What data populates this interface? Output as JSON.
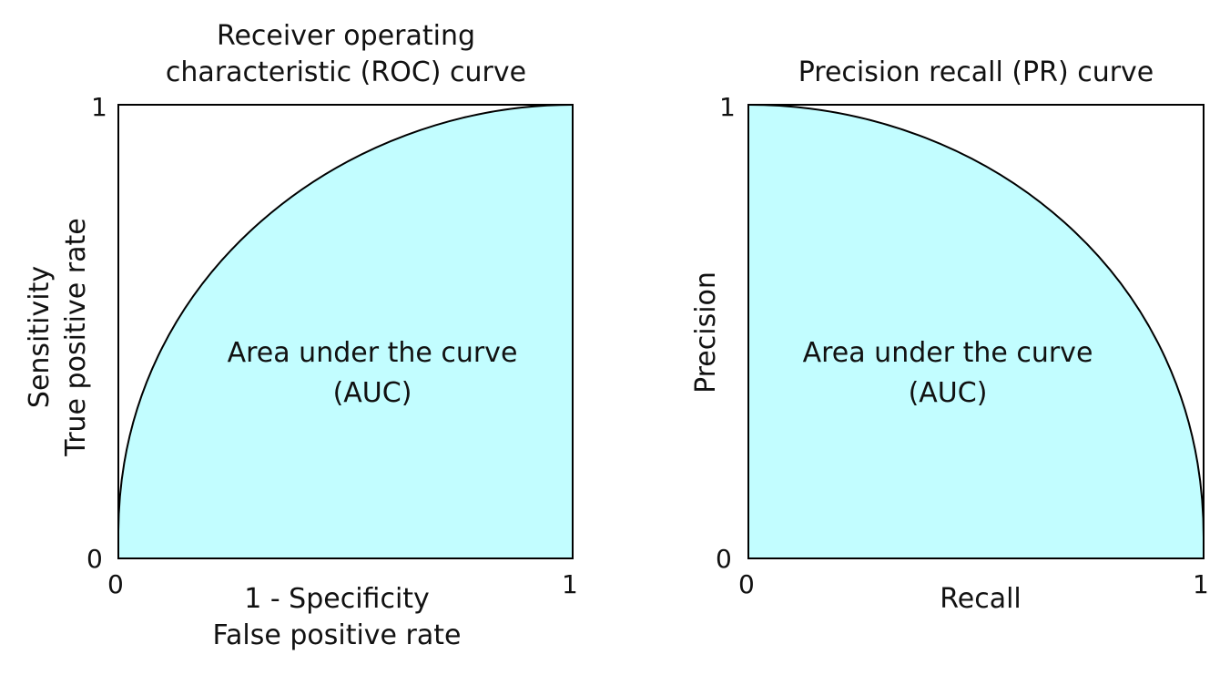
{
  "colors": {
    "fill": "#c2fdff",
    "stroke": "#000000"
  },
  "roc": {
    "title_line1": "Receiver operating",
    "title_line2": "characteristic (ROC) curve",
    "ylabel_line1": "Sensitivity",
    "ylabel_line2": "True positive rate",
    "xlabel_line1": "1 - Specificity",
    "xlabel_line2": "False positive rate",
    "area_line1": "Area under the curve",
    "area_line2": "(AUC)",
    "tick_y_top": "1",
    "tick_y_bottom": "0",
    "tick_x_left": "0",
    "tick_x_right": "1"
  },
  "pr": {
    "title": "Precision recall (PR) curve",
    "ylabel": "Precision",
    "xlabel": "Recall",
    "area_line1": "Area under the curve",
    "area_line2": "(AUC)",
    "tick_y_top": "1",
    "tick_y_bottom": "0",
    "tick_x_left": "0",
    "tick_x_right": "1"
  }
}
